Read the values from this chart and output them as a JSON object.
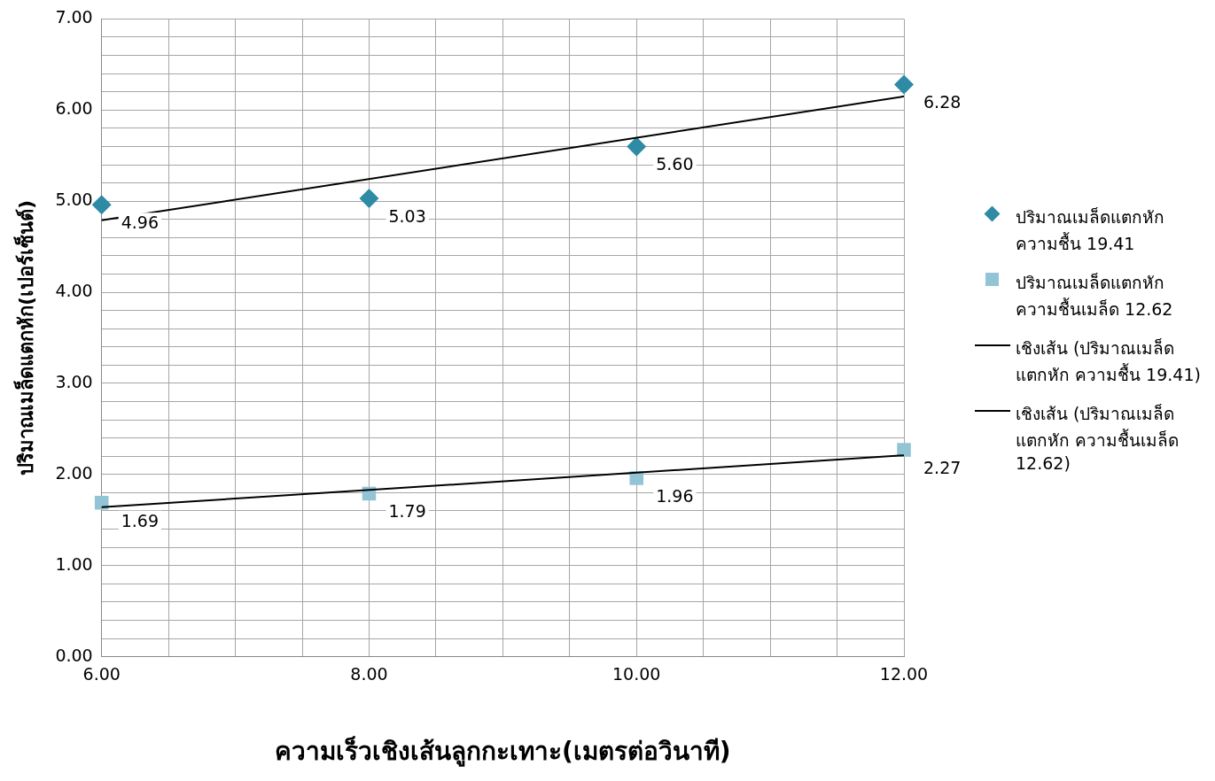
{
  "chart_data": {
    "type": "scatter",
    "xlabel": "ความเร็วเชิงเส้นลูกกะเทาะ(เมตรต่อวินาที)",
    "ylabel": "ปริมาณเมล็ดแตกหัก(เปอร์เซ็นต์)",
    "xlim": [
      6,
      12
    ],
    "ylim": [
      0,
      7
    ],
    "xticks": [
      {
        "value": 6,
        "label": "6.00"
      },
      {
        "value": 6.5,
        "label": null
      },
      {
        "value": 7,
        "label": null
      },
      {
        "value": 7.5,
        "label": null
      },
      {
        "value": 8,
        "label": "8.00"
      },
      {
        "value": 8.5,
        "label": null
      },
      {
        "value": 9,
        "label": null
      },
      {
        "value": 9.5,
        "label": null
      },
      {
        "value": 10,
        "label": "10.00"
      },
      {
        "value": 10.5,
        "label": null
      },
      {
        "value": 11,
        "label": null
      },
      {
        "value": 11.5,
        "label": null
      },
      {
        "value": 12,
        "label": "12.00"
      }
    ],
    "yticks": [
      {
        "value": 0,
        "label": "0.00"
      },
      {
        "value": 0.2,
        "label": null
      },
      {
        "value": 0.4,
        "label": null
      },
      {
        "value": 0.6,
        "label": null
      },
      {
        "value": 0.8,
        "label": null
      },
      {
        "value": 1,
        "label": "1.00"
      },
      {
        "value": 1.2,
        "label": null
      },
      {
        "value": 1.4,
        "label": null
      },
      {
        "value": 1.6,
        "label": null
      },
      {
        "value": 1.8,
        "label": null
      },
      {
        "value": 2,
        "label": "2.00"
      },
      {
        "value": 2.2,
        "label": null
      },
      {
        "value": 2.4,
        "label": null
      },
      {
        "value": 2.6,
        "label": null
      },
      {
        "value": 2.8,
        "label": null
      },
      {
        "value": 3,
        "label": "3.00"
      },
      {
        "value": 3.2,
        "label": null
      },
      {
        "value": 3.4,
        "label": null
      },
      {
        "value": 3.6,
        "label": null
      },
      {
        "value": 3.8,
        "label": null
      },
      {
        "value": 4,
        "label": "4.00"
      },
      {
        "value": 4.2,
        "label": null
      },
      {
        "value": 4.4,
        "label": null
      },
      {
        "value": 4.6,
        "label": null
      },
      {
        "value": 4.8,
        "label": null
      },
      {
        "value": 5,
        "label": "5.00"
      },
      {
        "value": 5.2,
        "label": null
      },
      {
        "value": 5.4,
        "label": null
      },
      {
        "value": 5.6,
        "label": null
      },
      {
        "value": 5.8,
        "label": null
      },
      {
        "value": 6,
        "label": "6.00"
      },
      {
        "value": 6.2,
        "label": null
      },
      {
        "value": 6.4,
        "label": null
      },
      {
        "value": 6.6,
        "label": null
      },
      {
        "value": 6.8,
        "label": null
      },
      {
        "value": 7,
        "label": "7.00"
      }
    ],
    "grid": true,
    "legend": "right",
    "series": [
      {
        "name": "ปริมาณเมล็ดแตกหัก ความชื้น 19.41",
        "marker": "diamond",
        "color": "#2f8aa5",
        "x": [
          6,
          8,
          10,
          12
        ],
        "values": [
          4.96,
          5.03,
          5.6,
          6.28
        ],
        "value_labels": [
          "4.96",
          "5.03",
          "5.60",
          "6.28"
        ]
      },
      {
        "name": "ปริมาณเมล็ดแตกหัก ความชื้นเมล็ด 12.62",
        "marker": "square",
        "color": "#92c4d6",
        "x": [
          6,
          8,
          10,
          12
        ],
        "values": [
          1.69,
          1.79,
          1.96,
          2.27
        ],
        "value_labels": [
          "1.69",
          "1.79",
          "1.96",
          "2.27"
        ]
      },
      {
        "name": "เชิงเส้น (ปริมาณเมล็ดแตกหัก ความชื้น 19.41)",
        "type": "line",
        "marker": "none",
        "line_style": "solid",
        "color": "#000000",
        "x": [
          6,
          12
        ],
        "values": [
          4.79,
          6.15
        ]
      },
      {
        "name": "เชิงเส้น (ปริมาณเมล็ดแตกหัก ความชื้นเมล็ด 12.62)",
        "type": "line",
        "marker": "none",
        "line_style": "solid",
        "color": "#000000",
        "x": [
          6,
          12
        ],
        "values": [
          1.64,
          2.21
        ]
      }
    ]
  }
}
